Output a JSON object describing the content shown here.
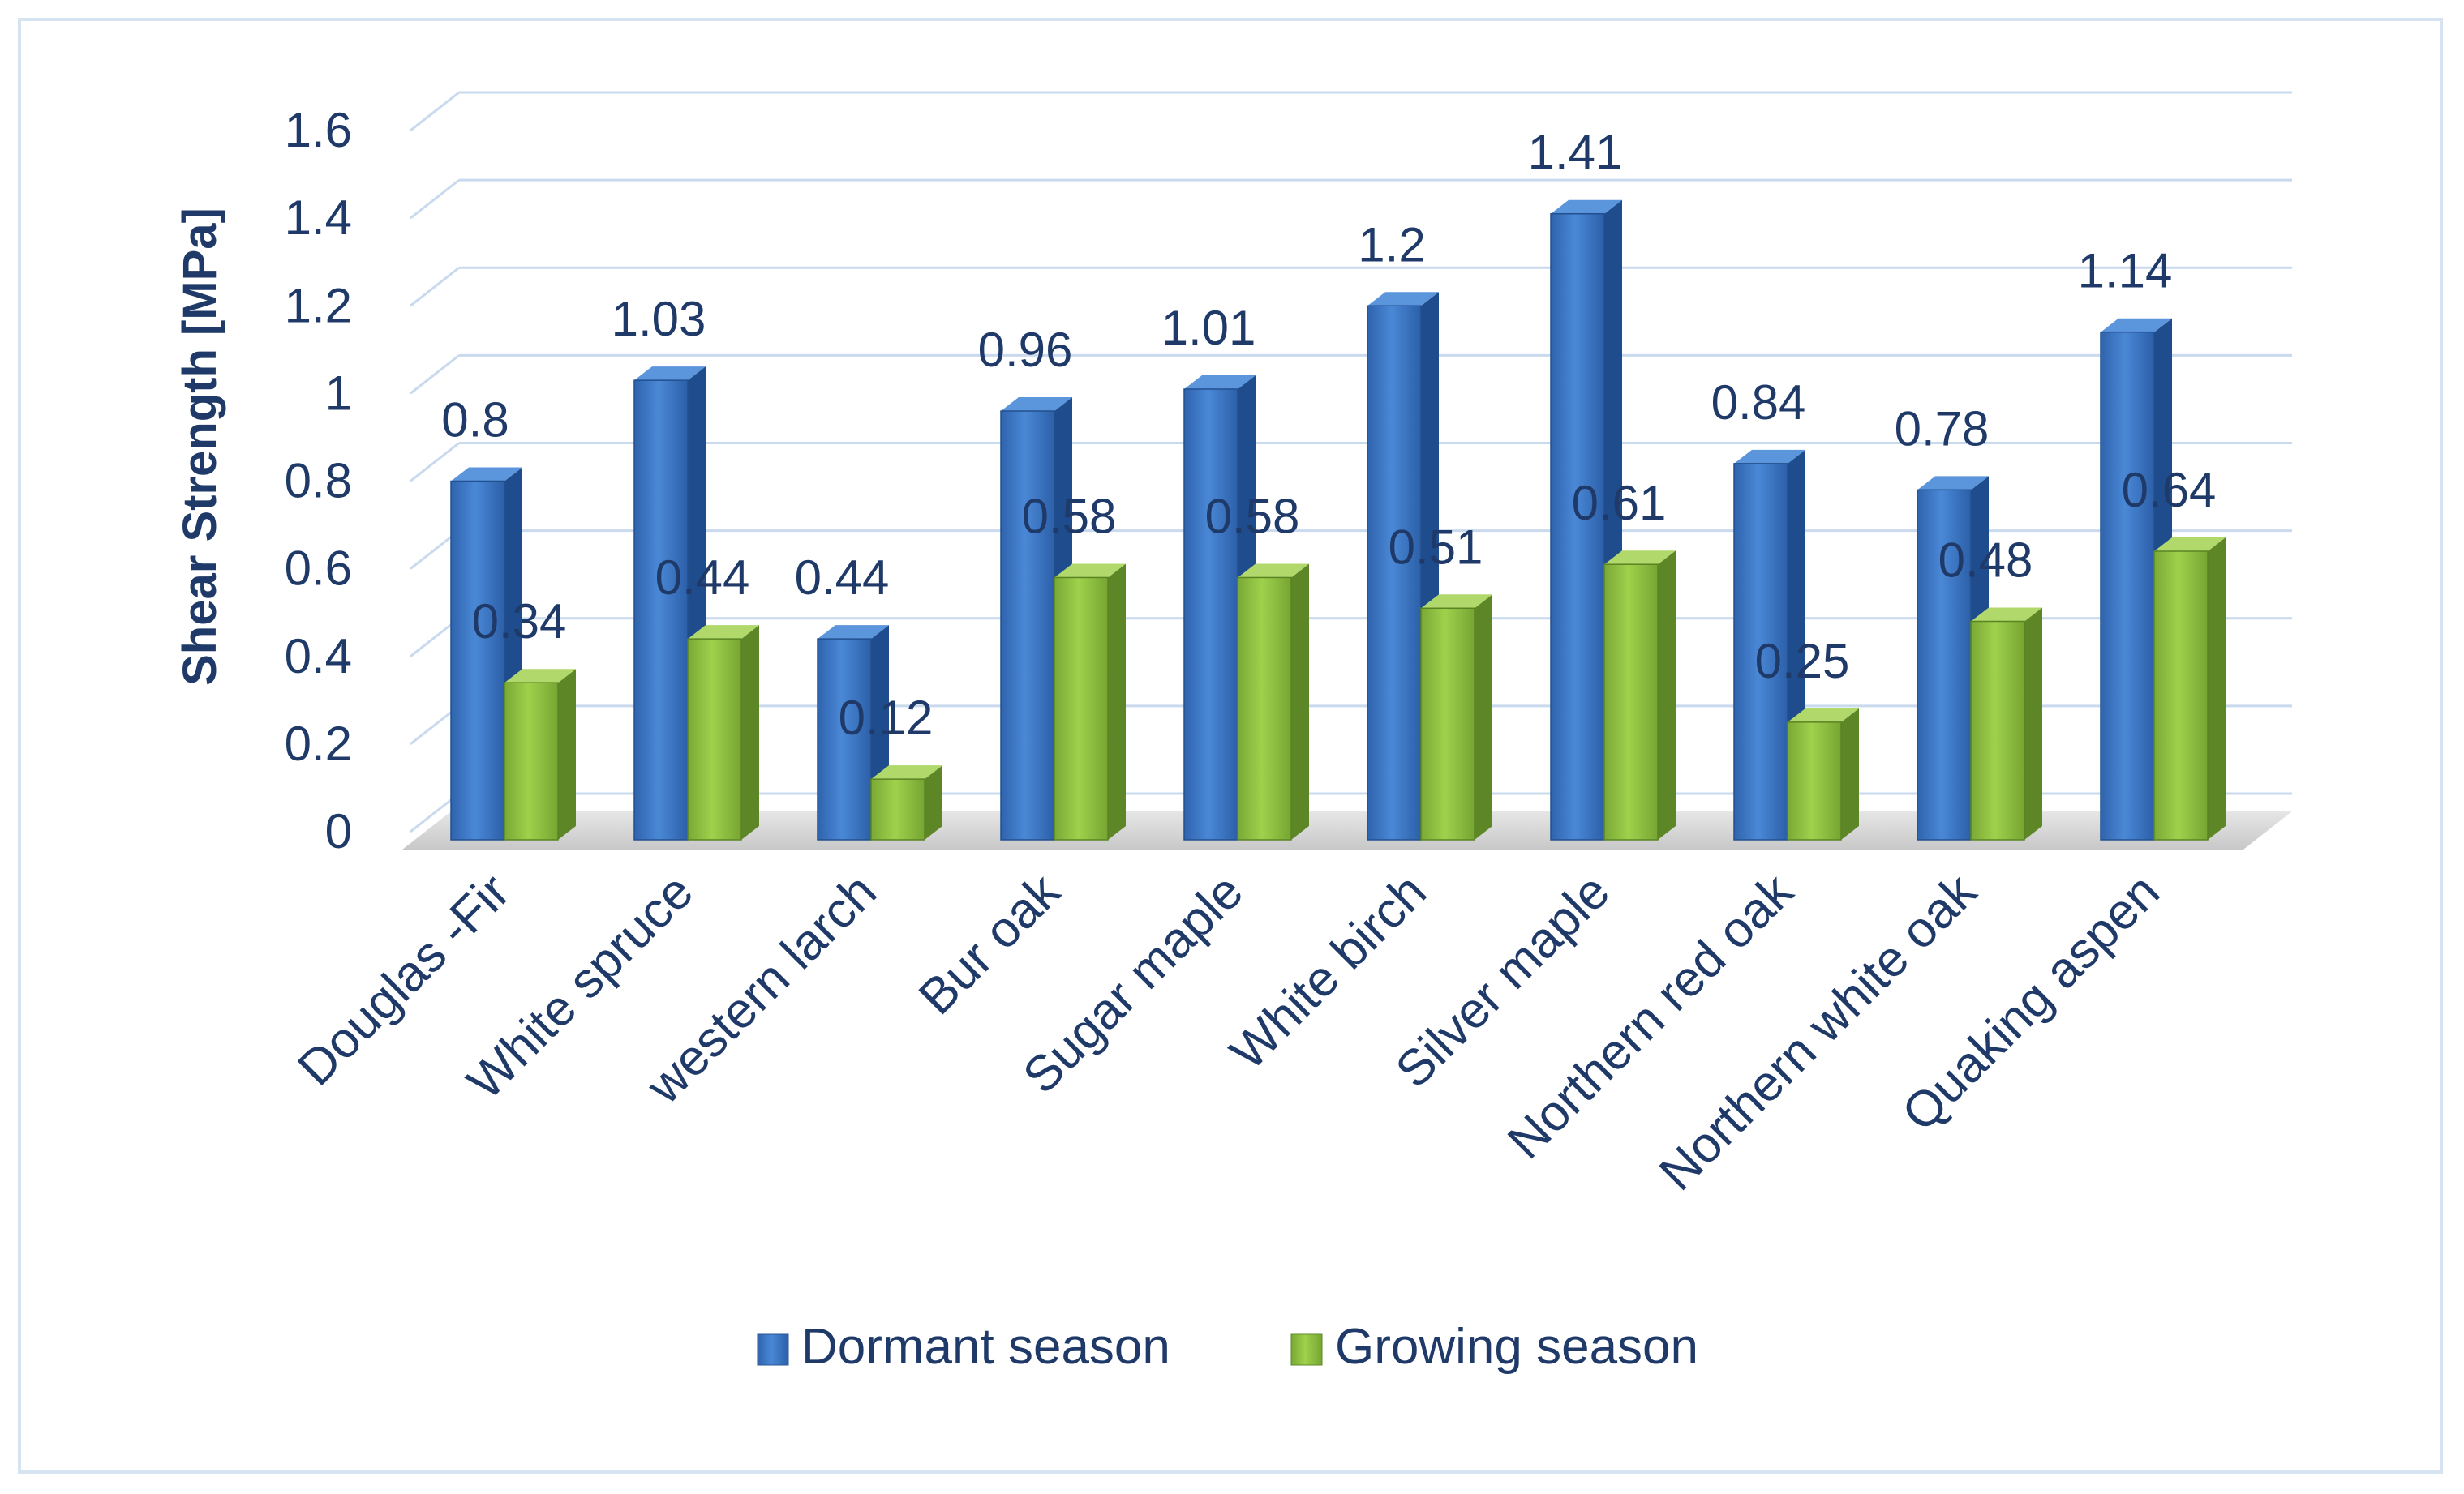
{
  "chart_data": {
    "type": "bar",
    "style": "3d-clustered-column",
    "title": "",
    "xlabel": "",
    "ylabel": "Shear Strength [MPa]",
    "ylim": [
      0,
      1.6
    ],
    "yticks": [
      0,
      0.2,
      0.4,
      0.6,
      0.8,
      1,
      1.2,
      1.4,
      1.6
    ],
    "ytick_labels": [
      "0",
      "0.2",
      "0.4",
      "0.6",
      "0.8",
      "1",
      "1.2",
      "1.4",
      "1.6"
    ],
    "grid": true,
    "legend_position": "bottom",
    "categories": [
      "Douglas -Fir",
      "White spruce",
      "western larch",
      "Bur oak",
      "Sugar maple",
      "White birch",
      "Silver maple",
      "Northern red oak",
      "Northern white oak",
      "Quaking aspen"
    ],
    "series": [
      {
        "name": "Dormant season",
        "values": [
          0.8,
          1.03,
          0.44,
          0.96,
          1.01,
          1.2,
          1.41,
          0.84,
          0.78,
          1.14
        ],
        "labels": [
          "0.8",
          "1.03",
          "0.44",
          "0.96",
          "1.01",
          "1.2",
          "1.41",
          "0.84",
          "0.78",
          "1.14"
        ],
        "color": "#3a78c9"
      },
      {
        "name": "Growing season",
        "values": [
          0.34,
          0.44,
          0.12,
          0.58,
          0.58,
          0.51,
          0.61,
          0.25,
          0.48,
          0.64
        ],
        "labels": [
          "0.34",
          "0.44",
          "0.12",
          "0.58",
          "0.58",
          "0.51",
          "0.61",
          "0.25",
          "0.48",
          "0.64"
        ],
        "color": "#8cbf3f"
      }
    ]
  }
}
